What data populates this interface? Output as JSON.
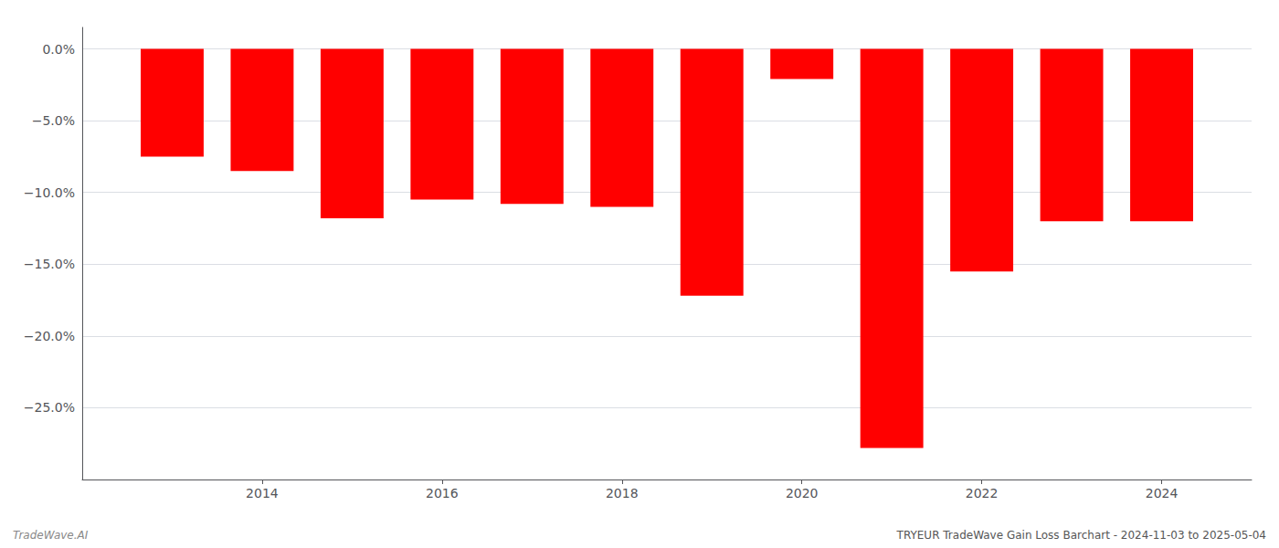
{
  "chart_data": {
    "type": "bar",
    "x": [
      2013,
      2014,
      2015,
      2016,
      2017,
      2018,
      2019,
      2020,
      2021,
      2022,
      2023,
      2024
    ],
    "values": [
      -7.5,
      -8.5,
      -11.8,
      -10.5,
      -10.8,
      -11.0,
      -17.2,
      -2.1,
      -27.8,
      -15.5,
      -12.0,
      -12.0
    ],
    "color": "#ff0000",
    "xlim": [
      2012,
      2025
    ],
    "xticks": [
      2014,
      2016,
      2018,
      2020,
      2022,
      2024
    ],
    "ylim": [
      -30,
      1.5
    ],
    "yticks": [
      {
        "value": 0.0,
        "label": "0.0%"
      },
      {
        "value": -5.0,
        "label": "−5.0%"
      },
      {
        "value": -10.0,
        "label": "−10.0%"
      },
      {
        "value": -15.0,
        "label": "−15.0%"
      },
      {
        "value": -20.0,
        "label": "−20.0%"
      },
      {
        "value": -25.0,
        "label": "−25.0%"
      }
    ],
    "grid": true,
    "annotations": [
      "TradeWave.AI",
      "TRYEUR TradeWave Gain Loss Barchart - 2024-11-03 to 2025-05-04"
    ]
  }
}
